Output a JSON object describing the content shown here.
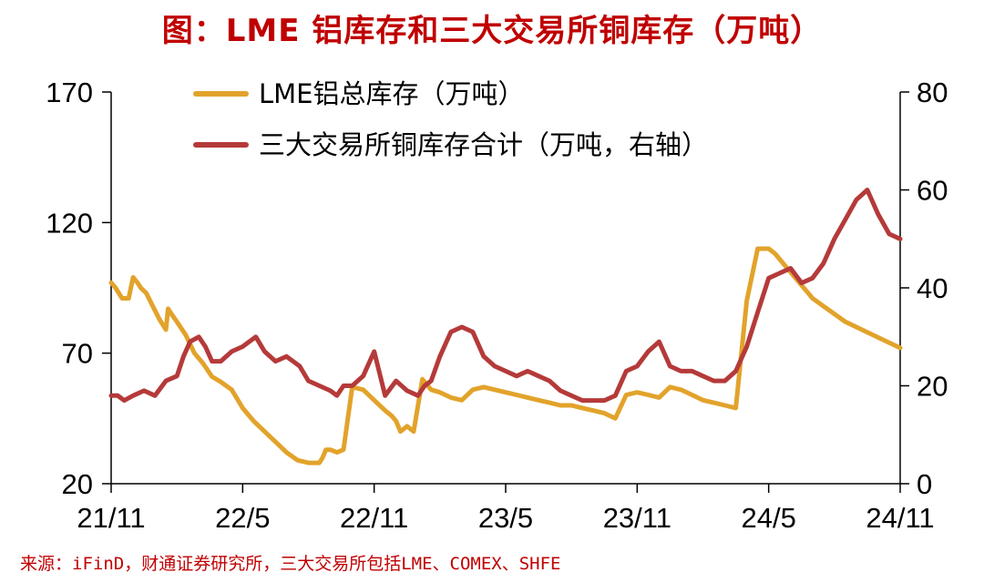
{
  "title": "图：LME 铝库存和三大交易所铜库存（万吨）",
  "source": "来源：iFinD，财通证券研究所，三大交易所包括LME、COMEX、SHFE",
  "chart_data": {
    "type": "line",
    "title": "图：LME 铝库存和三大交易所铜库存（万吨）",
    "x_ticks": [
      "21/11",
      "22/5",
      "22/11",
      "23/5",
      "23/11",
      "24/5",
      "24/11"
    ],
    "y_left": {
      "range": [
        20,
        170
      ],
      "ticks": [
        "20",
        "70",
        "120",
        "170"
      ]
    },
    "y_right": {
      "range": [
        0,
        80
      ],
      "ticks": [
        "0",
        "20",
        "40",
        "60",
        "80"
      ]
    },
    "legend_position": "top-left",
    "grid": false,
    "colors": {
      "aluminum": "#e2a32b",
      "copper": "#b53a3a"
    },
    "series": [
      {
        "name": "LME铝总库存（万吨）",
        "axis": "left",
        "t": [
          0,
          0.2,
          0.5,
          0.8,
          1.0,
          1.2,
          1.35,
          1.6,
          1.9,
          2.2,
          2.5,
          2.6,
          2.75,
          3.0,
          3.4,
          3.8,
          4.2,
          4.6,
          5.0,
          5.5,
          6.0,
          6.5,
          7.0,
          7.5,
          8.0,
          8.5,
          9.0,
          9.3,
          9.5,
          9.65,
          9.8,
          10.0,
          10.3,
          10.6,
          11.0,
          11.5,
          12.0,
          12.5,
          12.8,
          13.0,
          13.2,
          13.5,
          13.8,
          14.2,
          14.6,
          15.0,
          15.5,
          16.0,
          16.5,
          17.0,
          17.5,
          18.0,
          18.5,
          19.0,
          19.5,
          20.0,
          20.5,
          21.0,
          21.5,
          22.0,
          22.5,
          23.0,
          23.5,
          24.0,
          24.5,
          25.0,
          25.5,
          26.0,
          26.5,
          27.0,
          27.5,
          28.0,
          28.5,
          29.0,
          29.5,
          30.0,
          30.3,
          30.5,
          30.8,
          31.0,
          31.3,
          31.6,
          31.8,
          32.0,
          32.5,
          33.0,
          33.5,
          34.0,
          34.5,
          35.0,
          35.5,
          36.0
        ],
        "values": [
          97,
          95,
          91,
          91,
          99,
          97,
          95,
          93,
          88,
          83,
          79,
          87,
          85,
          82,
          77,
          70,
          66,
          61,
          59,
          56,
          49,
          44,
          40,
          36,
          32,
          29,
          28,
          28,
          28,
          30,
          33,
          33,
          32,
          33,
          57,
          56,
          52,
          48,
          46,
          44,
          40,
          42,
          40,
          60,
          56,
          55,
          53,
          52,
          56,
          57,
          56,
          55,
          54,
          53,
          52,
          51,
          50,
          50,
          49,
          48,
          47,
          45,
          54,
          55,
          54,
          53,
          57,
          56,
          54,
          52,
          51,
          50,
          49,
          90,
          110,
          110,
          108,
          106,
          103,
          101,
          98,
          95,
          93,
          91,
          88,
          85,
          82,
          80,
          78,
          76,
          74,
          72
        ]
      },
      {
        "name": "三大交易所铜库存合计（万吨，右轴）",
        "axis": "right",
        "t": [
          0,
          0.3,
          0.6,
          1.0,
          1.5,
          2.0,
          2.5,
          3.0,
          3.3,
          3.6,
          4.0,
          4.3,
          4.6,
          5.0,
          5.5,
          6.0,
          6.3,
          6.6,
          7.0,
          7.5,
          8.0,
          8.3,
          8.6,
          9.0,
          9.5,
          10.0,
          10.3,
          10.6,
          11.0,
          11.5,
          12.0,
          12.5,
          13.0,
          13.5,
          14.0,
          14.3,
          14.6,
          15.0,
          15.5,
          16.0,
          16.5,
          17.0,
          17.5,
          18.0,
          18.5,
          19.0,
          19.5,
          20.0,
          20.5,
          21.0,
          21.5,
          22.0,
          22.5,
          23.0,
          23.5,
          24.0,
          24.5,
          25.0,
          25.5,
          26.0,
          26.5,
          27.0,
          27.5,
          28.0,
          28.5,
          29.0,
          29.5,
          30.0,
          30.5,
          31.0,
          31.5,
          32.0,
          32.5,
          33.0,
          33.5,
          34.0,
          34.5,
          35.0,
          35.5,
          36.0
        ],
        "values": [
          18,
          18,
          17,
          18,
          19,
          18,
          21,
          22,
          26,
          29,
          30,
          28,
          25,
          25,
          27,
          28,
          29,
          30,
          27,
          25,
          26,
          25,
          24,
          21,
          20,
          19,
          18,
          20,
          20,
          22,
          27,
          18,
          21,
          19,
          18,
          20,
          21,
          26,
          31,
          32,
          31,
          26,
          24,
          23,
          22,
          23,
          22,
          21,
          19,
          18,
          17,
          17,
          17,
          18,
          23,
          24,
          27,
          29,
          24,
          23,
          23,
          22,
          21,
          21,
          23,
          28,
          35,
          42,
          43,
          44,
          41,
          42,
          45,
          50,
          54,
          58,
          60,
          55,
          51,
          50
        ]
      }
    ]
  }
}
